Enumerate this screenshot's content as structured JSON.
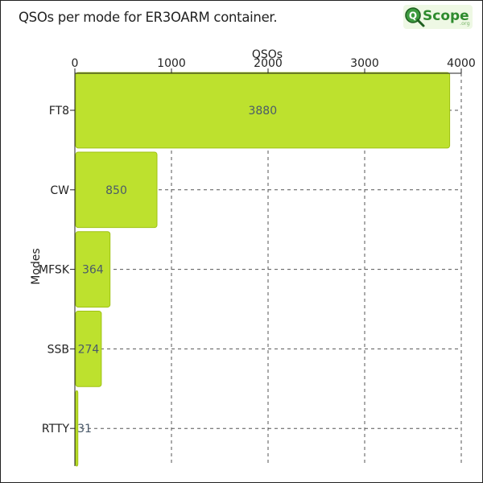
{
  "title": "QSOs per mode for ER3OARM container.",
  "logo": {
    "icon": "magnifier-q-icon",
    "main_text": "Scope",
    "suffix_text": ".org",
    "colors": {
      "badge": "#3d9b3f",
      "text": "#2e8b2e",
      "background": "#eef8e4"
    }
  },
  "colors": {
    "bar_fill": "#bde12e",
    "bar_stroke": "#9fc212",
    "grid": "#555555",
    "axis": "#222222",
    "value_label": "#4a5a6a"
  },
  "chart_data": {
    "type": "bar",
    "orientation": "horizontal",
    "categories": [
      "FT8",
      "CW",
      "MFSK",
      "SSB",
      "RTTY"
    ],
    "values": [
      3880,
      850,
      364,
      274,
      31
    ],
    "title": "QSOs per mode for ER3OARM container.",
    "xlabel": "QSOs",
    "ylabel": "Modes",
    "xlim": [
      0,
      4000
    ],
    "xticks": [
      0,
      1000,
      2000,
      3000,
      4000
    ],
    "xaxis_position": "top",
    "grid": true,
    "grid_style": "dashed",
    "data_labels": true
  }
}
